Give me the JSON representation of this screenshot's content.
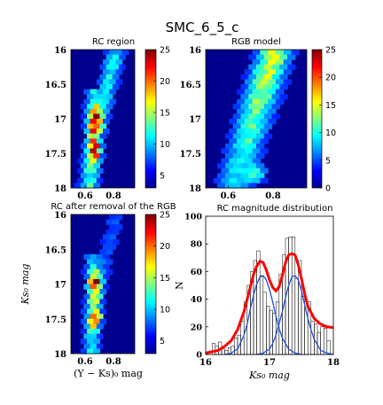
{
  "figure": {
    "title": "SMC_6_5_c"
  },
  "colors": {
    "max": "#8b0000",
    "line": "#ff0000",
    "gauss": "#1f4fd6",
    "hist_edge": "#000000"
  },
  "chart_data": [
    {
      "type": "heatmap",
      "title": "RC region",
      "xlabel": "",
      "ylabel": "",
      "xlim": [
        0.5,
        0.95
      ],
      "ylim": [
        18.0,
        16.0
      ],
      "x_ticks": [
        "0.6",
        "0.8"
      ],
      "y_ticks": [
        "16",
        "16.5",
        "17",
        "17.5",
        "18"
      ],
      "colorbar": {
        "range": [
          3,
          25
        ],
        "ticks": [
          "5",
          "10",
          "15",
          "20",
          "25"
        ]
      },
      "grid": false
    },
    {
      "type": "heatmap",
      "title": "RGB model",
      "xlabel": "",
      "ylabel": "",
      "xlim": [
        0.5,
        0.95
      ],
      "ylim": [
        18.0,
        16.0
      ],
      "x_ticks": [
        "0.6",
        "0.8"
      ],
      "y_ticks": [
        "16",
        "16.5",
        "17",
        "17.5",
        "18"
      ],
      "colorbar": {
        "range": [
          0,
          25
        ],
        "ticks": [
          "0",
          "5",
          "10",
          "15",
          "20",
          "25"
        ]
      },
      "grid": false
    },
    {
      "type": "heatmap",
      "title": "RC after removal of the RGB",
      "xlabel": "(Y − Ks)₀ mag",
      "ylabel": "Ks₀ mag",
      "xlim": [
        0.5,
        0.95
      ],
      "ylim": [
        18.0,
        16.0
      ],
      "x_ticks": [
        "0.6",
        "0.8"
      ],
      "y_ticks": [
        "16",
        "16.5",
        "17",
        "17.5",
        "18"
      ],
      "colorbar": {
        "range": [
          3,
          25
        ],
        "ticks": [
          "5",
          "10",
          "15",
          "20",
          "25"
        ]
      },
      "grid": false
    },
    {
      "type": "bar",
      "title": "RC magnitude distribution",
      "xlabel": "Ks₀ mag",
      "ylabel": "N",
      "xlim": [
        16,
        18
      ],
      "ylim": [
        0,
        100
      ],
      "x_ticks": [
        "16",
        "17",
        "18"
      ],
      "y_ticks": [
        "0",
        "20",
        "40",
        "60",
        "80",
        "100"
      ],
      "bin_width": 0.05,
      "bin_centers": [
        16.125,
        16.175,
        16.225,
        16.275,
        16.325,
        16.375,
        16.425,
        16.475,
        16.525,
        16.575,
        16.625,
        16.675,
        16.725,
        16.775,
        16.825,
        16.875,
        16.925,
        16.975,
        17.025,
        17.075,
        17.125,
        17.175,
        17.225,
        17.275,
        17.325,
        17.375,
        17.425,
        17.475,
        17.525,
        17.575,
        17.625,
        17.675,
        17.725,
        17.775,
        17.825,
        17.875,
        17.925
      ],
      "counts": [
        8,
        6,
        9,
        4,
        3,
        5,
        6,
        12,
        14,
        24,
        38,
        50,
        60,
        68,
        75,
        57,
        45,
        35,
        32,
        30,
        38,
        58,
        72,
        84,
        85,
        85,
        55,
        68,
        42,
        34,
        38,
        24,
        22,
        16,
        20,
        19,
        10
      ],
      "series": [
        {
          "x": [
            16.0,
            16.1,
            16.2,
            16.3,
            16.4,
            16.5,
            16.6,
            16.7,
            16.75,
            16.8,
            16.85,
            16.9,
            16.95,
            17.0,
            17.05,
            17.1,
            17.15,
            17.2,
            17.25,
            17.3,
            17.35,
            17.4,
            17.45,
            17.5,
            17.55,
            17.6,
            17.7,
            17.8,
            17.9,
            18.0
          ],
          "values": [
            1,
            2,
            3,
            6,
            10,
            18,
            31,
            49,
            58,
            64,
            67.5,
            66.5,
            61,
            54,
            48.5,
            46,
            49,
            57,
            66.5,
            72,
            73,
            72,
            65,
            55,
            44,
            35,
            26,
            22,
            20,
            19.5
          ]
        },
        {
          "x": [
            16.3,
            16.4,
            16.5,
            16.6,
            16.65,
            16.7,
            16.75,
            16.8,
            16.85,
            16.9,
            16.95,
            17.0,
            17.05,
            17.1,
            17.15,
            17.2,
            17.3,
            17.4,
            17.5
          ],
          "values": [
            0,
            1,
            4,
            14,
            22,
            33,
            43,
            51,
            56,
            57,
            54,
            47,
            38,
            28,
            19,
            12,
            4,
            1,
            0
          ]
        },
        {
          "x": [
            16.8,
            16.9,
            17.0,
            17.05,
            17.1,
            17.15,
            17.2,
            17.25,
            17.3,
            17.35,
            17.4,
            17.45,
            17.5,
            17.55,
            17.6,
            17.65,
            17.7,
            17.8,
            17.9,
            18.0
          ],
          "values": [
            0,
            1,
            4,
            8,
            14,
            22,
            31,
            41,
            50,
            56,
            57,
            54,
            46,
            36,
            26,
            18,
            11,
            3,
            1,
            0
          ]
        }
      ],
      "grid": false
    }
  ]
}
